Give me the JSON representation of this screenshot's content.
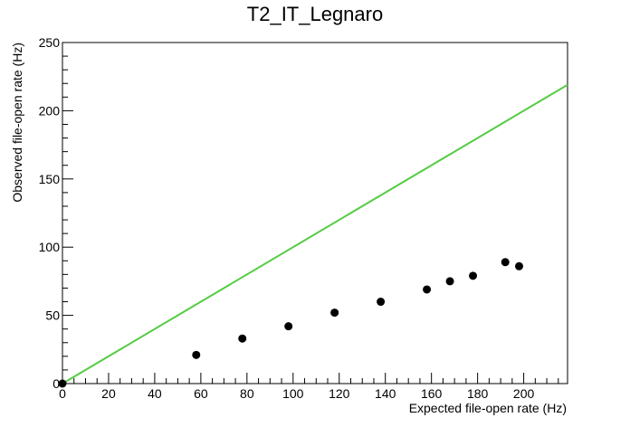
{
  "chart_data": {
    "type": "scatter",
    "title": "T2_IT_Legnaro",
    "xlabel": "Expected file-open rate (Hz)",
    "ylabel": "Observed file-open rate (Hz)",
    "xlim": [
      0,
      219
    ],
    "ylim": [
      0,
      250
    ],
    "x_ticks": [
      "0",
      "20",
      "40",
      "60",
      "80",
      "100",
      "120",
      "140",
      "160",
      "180",
      "200"
    ],
    "y_ticks": [
      "0",
      "50",
      "100",
      "150",
      "200",
      "250"
    ],
    "grid": false,
    "series": [
      {
        "color": "#000000",
        "points": [
          {
            "x": 0,
            "y": 0
          },
          {
            "x": 58,
            "y": 21
          },
          {
            "x": 78,
            "y": 33
          },
          {
            "x": 98,
            "y": 42
          },
          {
            "x": 118,
            "y": 52
          },
          {
            "x": 138,
            "y": 60
          },
          {
            "x": 158,
            "y": 69
          },
          {
            "x": 168,
            "y": 75
          },
          {
            "x": 178,
            "y": 79
          },
          {
            "x": 192,
            "y": 89
          },
          {
            "x": 198,
            "y": 86
          }
        ]
      }
    ],
    "reference_line": {
      "color": "#55cc44",
      "from": [
        0,
        0
      ],
      "to": [
        219,
        219
      ]
    }
  }
}
